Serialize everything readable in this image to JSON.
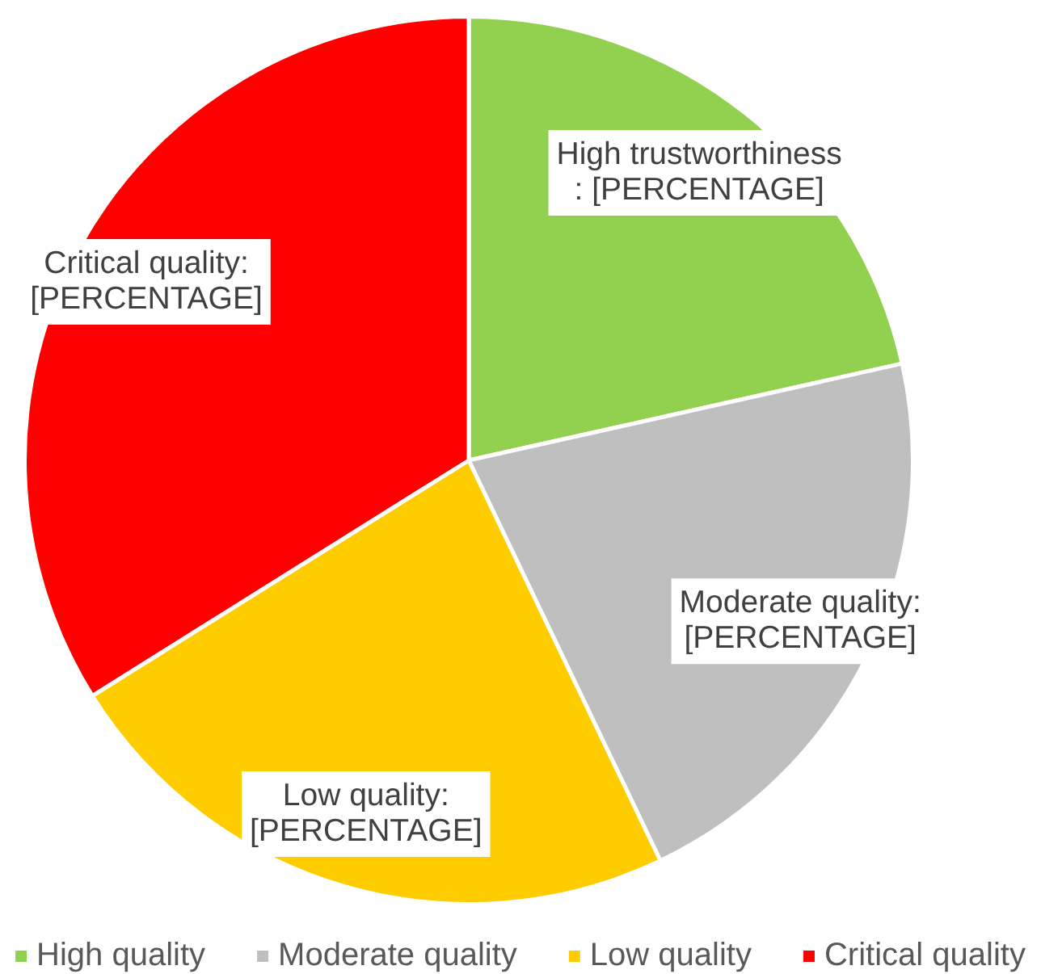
{
  "chart_data": {
    "type": "pie",
    "categories": [
      "High quality",
      "Moderate quality",
      "Low quality",
      "Critical quality"
    ],
    "values": [
      21.5,
      21.4,
      23.2,
      33.9
    ],
    "colors": [
      "#92d050",
      "#bfbfbf",
      "#ffcc00",
      "#ff0000"
    ],
    "value_labels": [
      "High trustworthiness\n: [PERCENTAGE]",
      "Moderate quality:\n[PERCENTAGE]",
      "Low quality:\n[PERCENTAGE]",
      "Critical quality:\n[PERCENTAGE]"
    ],
    "legend": "bottom"
  }
}
